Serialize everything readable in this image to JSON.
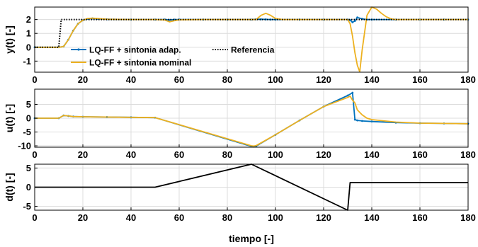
{
  "chart_data": [
    {
      "type": "line",
      "ylabel": "y(t) [-]",
      "xlim": [
        0,
        180
      ],
      "ylim": [
        -1.8,
        2.9
      ],
      "xticks": [
        0,
        20,
        40,
        60,
        80,
        100,
        120,
        140,
        160,
        180
      ],
      "yticks": [
        -1,
        0,
        1,
        2
      ],
      "grid": true,
      "legend": "bottom-left",
      "series": [
        {
          "name": "LQ-FF + sintonia adap.",
          "color": "#0072BD",
          "style": "solid-markers",
          "x": [
            0,
            10,
            12,
            14,
            16,
            18,
            20,
            22,
            24,
            26,
            30,
            40,
            50,
            54,
            56,
            58,
            60,
            70,
            80,
            90,
            92,
            94,
            96,
            98,
            100,
            110,
            120,
            130,
            131,
            132,
            133,
            134,
            136,
            138,
            140,
            150,
            160,
            170,
            180
          ],
          "y": [
            0,
            0,
            0.05,
            0.55,
            1.2,
            1.7,
            1.95,
            2.05,
            2.08,
            2.05,
            2.02,
            2.0,
            2.0,
            2.0,
            1.97,
            1.99,
            2.0,
            2.0,
            2.0,
            2.0,
            2.02,
            2.02,
            2.01,
            2.0,
            2.0,
            2.0,
            2.0,
            2.0,
            1.96,
            1.8,
            1.9,
            2.15,
            2.05,
            2.0,
            2.0,
            2.0,
            2.0,
            2.0,
            2.0
          ]
        },
        {
          "name": "LQ-FF + sintonia nominal",
          "color": "#EDB120",
          "style": "solid",
          "x": [
            0,
            10,
            12,
            14,
            16,
            18,
            20,
            22,
            24,
            26,
            30,
            40,
            50,
            54,
            56,
            58,
            60,
            70,
            80,
            90,
            92,
            94,
            96,
            98,
            100,
            103,
            106,
            110,
            120,
            130,
            131,
            132,
            133,
            134,
            135,
            136,
            138,
            140,
            142,
            144,
            146,
            148,
            150,
            160,
            170,
            180
          ],
          "y": [
            0,
            0,
            0.05,
            0.55,
            1.2,
            1.7,
            1.95,
            2.08,
            2.1,
            2.07,
            2.02,
            2.0,
            2.0,
            1.97,
            1.83,
            1.92,
            1.98,
            2.0,
            2.0,
            2.0,
            2.0,
            2.3,
            2.45,
            2.3,
            2.08,
            2.0,
            2.0,
            2.0,
            2.0,
            2.0,
            1.7,
            0.8,
            -0.4,
            -1.3,
            -1.78,
            -0.2,
            2.3,
            2.9,
            2.75,
            2.45,
            2.2,
            2.05,
            2.0,
            2.0,
            2.0,
            2.0
          ]
        },
        {
          "name": "Referencia",
          "color": "#000000",
          "style": "dotted",
          "x": [
            0,
            10,
            11,
            180
          ],
          "y": [
            0,
            0,
            2,
            2
          ]
        }
      ]
    },
    {
      "type": "line",
      "ylabel": "u(t) [-]",
      "xlim": [
        0,
        180
      ],
      "ylim": [
        -10.5,
        10.5
      ],
      "xticks": [
        0,
        20,
        40,
        60,
        80,
        100,
        120,
        140,
        160,
        180
      ],
      "yticks": [
        -10,
        -5,
        0,
        5
      ],
      "grid": true,
      "series": [
        {
          "name": "LQ-FF + sintonia adap.",
          "color": "#0072BD",
          "style": "solid-markers",
          "x": [
            0,
            10,
            12,
            14,
            16,
            20,
            30,
            40,
            50,
            90,
            91,
            92,
            100,
            110,
            120,
            130,
            132,
            133,
            134,
            136,
            140,
            150,
            160,
            170,
            180
          ],
          "y": [
            0,
            0,
            1.0,
            0.8,
            0.6,
            0.5,
            0.4,
            0.3,
            0.2,
            -10.2,
            -10.3,
            -10.1,
            -6.0,
            -0.8,
            4.2,
            8.2,
            9.2,
            -0.5,
            -0.8,
            -1.0,
            -1.2,
            -1.6,
            -1.8,
            -1.9,
            -2.0
          ]
        },
        {
          "name": "LQ-FF + sintonia nominal",
          "color": "#EDB120",
          "style": "solid",
          "x": [
            0,
            10,
            12,
            14,
            16,
            20,
            30,
            40,
            50,
            90,
            91,
            92,
            100,
            110,
            120,
            130,
            131,
            132,
            133,
            134,
            136,
            138,
            140,
            150,
            160,
            170,
            180
          ],
          "y": [
            0,
            0,
            1.0,
            0.8,
            0.6,
            0.5,
            0.4,
            0.3,
            0.2,
            -10.0,
            -10.1,
            -9.9,
            -6.0,
            -0.8,
            4.2,
            7.5,
            8.0,
            6.5,
            5.5,
            3.0,
            1.2,
            0.0,
            -0.5,
            -1.4,
            -1.8,
            -1.9,
            -2.0
          ]
        }
      ]
    },
    {
      "type": "line",
      "ylabel": "d(t) [-]",
      "xlabel": "tiempo [-]",
      "xlim": [
        0,
        180
      ],
      "ylim": [
        -6,
        6
      ],
      "xticks": [
        0,
        20,
        40,
        60,
        80,
        100,
        120,
        140,
        160,
        180
      ],
      "yticks": [
        -5,
        0,
        5
      ],
      "grid": true,
      "series": [
        {
          "name": "d(t)",
          "color": "#000000",
          "style": "solid",
          "x": [
            0,
            50,
            90,
            130,
            131,
            180
          ],
          "y": [
            0,
            0,
            6,
            -6,
            1.2,
            1.2
          ]
        }
      ]
    }
  ]
}
